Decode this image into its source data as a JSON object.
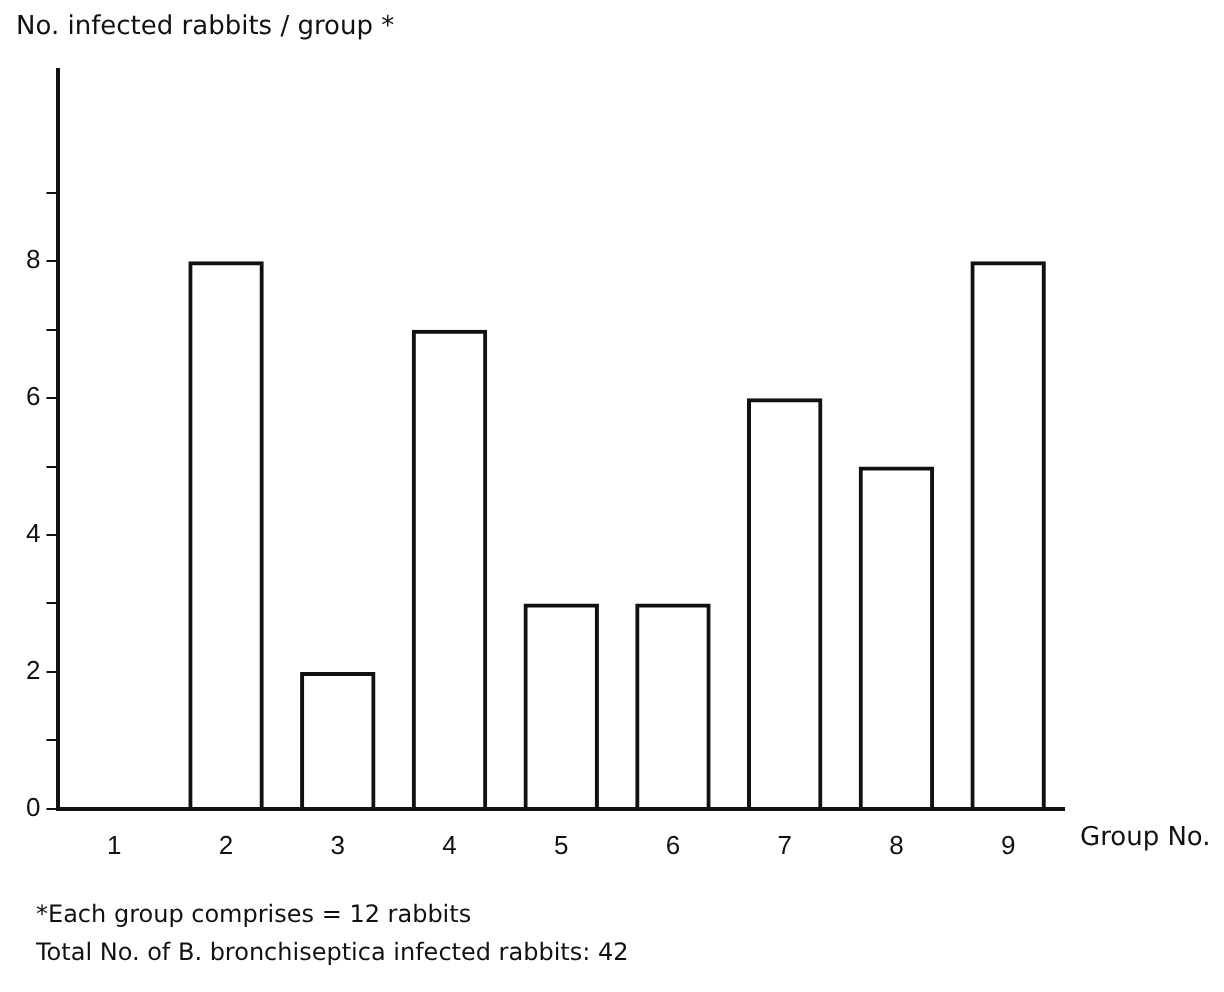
{
  "chart_data": {
    "type": "bar",
    "ylabel": "No. infected rabbits / group *",
    "xlabel": "Group No.",
    "categories": [
      "1",
      "2",
      "3",
      "4",
      "5",
      "6",
      "7",
      "8",
      "9"
    ],
    "values": [
      0,
      8,
      2,
      7,
      3,
      3,
      6,
      5,
      8
    ],
    "color": "#111111",
    "ylim": [
      0,
      10.8
    ],
    "yticks": [
      0,
      {
        "value": 1,
        "label": null
      },
      2,
      {
        "value": 3,
        "label": null
      },
      4,
      {
        "value": 5,
        "label": null
      },
      6,
      {
        "value": 7,
        "label": null
      },
      8,
      {
        "value": 9,
        "label": null
      }
    ],
    "grid": false,
    "legend": false,
    "annotations": [
      "*Each group comprises = 12 rabbits",
      "Total No. of B. bronchiseptica infected rabbits: 42"
    ]
  }
}
